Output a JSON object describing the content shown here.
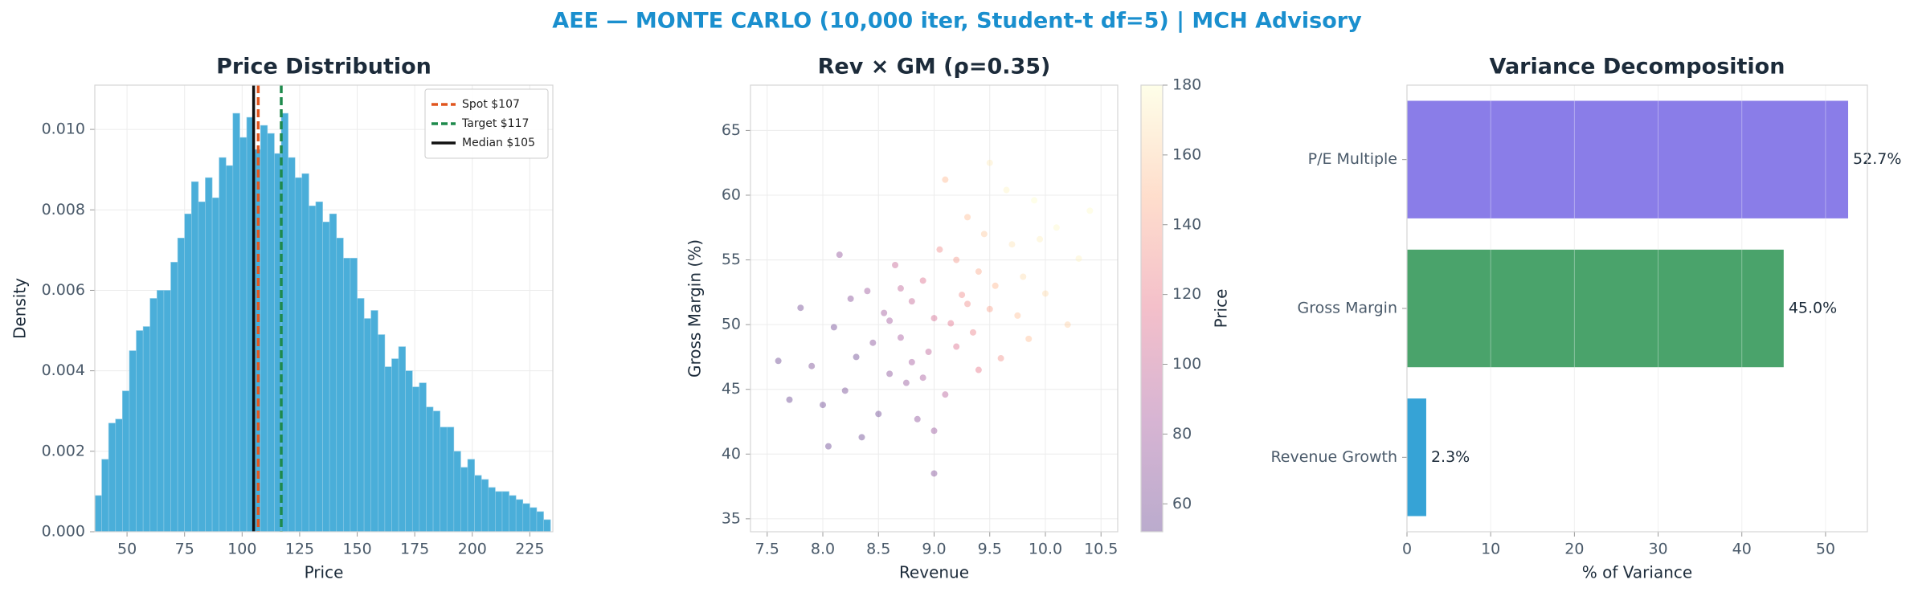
{
  "title": "AEE — MONTE CARLO (10,000 iter, Student-t df=5) | MCH Advisory",
  "chart_data": [
    {
      "type": "histogram",
      "title": "Price Distribution",
      "xlabel": "Price",
      "ylabel": "Density",
      "color": "#4aaed9",
      "bins": [
        36,
        39,
        42,
        45,
        48,
        51,
        54,
        57,
        60,
        63,
        66,
        69,
        72,
        75,
        78,
        81,
        84,
        87,
        90,
        93,
        96,
        99,
        102,
        105,
        108,
        111,
        114,
        117,
        120,
        123,
        126,
        129,
        132,
        135,
        138,
        141,
        144,
        147,
        150,
        153,
        156,
        159,
        162,
        165,
        168,
        171,
        174,
        177,
        180,
        183,
        186,
        189,
        192,
        195,
        198,
        201,
        204,
        207,
        210,
        213,
        216,
        219,
        222,
        225,
        228,
        231,
        234
      ],
      "values": [
        0.0009,
        0.0018,
        0.0027,
        0.0028,
        0.0035,
        0.0045,
        0.005,
        0.0051,
        0.0058,
        0.006,
        0.006,
        0.0067,
        0.0073,
        0.0079,
        0.0087,
        0.0082,
        0.0088,
        0.0083,
        0.0093,
        0.0091,
        0.0104,
        0.0098,
        0.0103,
        0.0095,
        0.0101,
        0.0099,
        0.0094,
        0.0104,
        0.0093,
        0.0088,
        0.0089,
        0.0081,
        0.0082,
        0.0077,
        0.0079,
        0.0073,
        0.0068,
        0.0068,
        0.0058,
        0.0053,
        0.0055,
        0.0049,
        0.0041,
        0.0043,
        0.0046,
        0.004,
        0.0036,
        0.0037,
        0.0031,
        0.003,
        0.0026,
        0.0026,
        0.002,
        0.0016,
        0.0018,
        0.0014,
        0.0013,
        0.0011,
        0.001,
        0.001,
        0.0009,
        0.0008,
        0.0007,
        0.0006,
        0.0005,
        0.0003
      ],
      "vlines": [
        {
          "name": "Spot $107",
          "value": 107,
          "color": "#e0561f",
          "dashed": true
        },
        {
          "name": "Target $117",
          "value": 117,
          "color": "#1e8a4c",
          "dashed": true
        },
        {
          "name": "Median $105",
          "value": 105,
          "color": "#111111",
          "dashed": false
        }
      ],
      "legend": "upper right",
      "grid": true,
      "xlim": [
        36,
        235
      ],
      "xticks": [
        50,
        75,
        100,
        125,
        150,
        175,
        200,
        225
      ],
      "ylim": [
        0,
        0.0111
      ],
      "yticks": [
        {
          "value": 0,
          "label": "0.000"
        },
        {
          "value": 0.002,
          "label": "0.002"
        },
        {
          "value": 0.004,
          "label": "0.004"
        },
        {
          "value": 0.006,
          "label": "0.006"
        },
        {
          "value": 0.008,
          "label": "0.008"
        },
        {
          "value": 0.01,
          "label": "0.010"
        }
      ]
    },
    {
      "type": "scatter",
      "title": "Rev × GM (ρ=0.35)",
      "xlabel": "Revenue",
      "ylabel": "Gross Margin (%)",
      "colorbar_label": "Price",
      "grid": true,
      "colormap": [
        "#3b0f70",
        "#8c2981",
        "#de4968",
        "#fe9f6d",
        "#fcfdbf"
      ],
      "opacity": 0.35,
      "x": [
        9.0,
        8.6,
        9.4,
        8.8,
        9.2,
        8.3,
        9.7,
        9.1,
        8.9,
        8.5,
        9.5,
        9.3,
        8.7,
        9.0,
        9.8,
        8.4,
        9.6,
        8.2,
        10.1,
        7.9,
        9.05,
        8.95,
        9.25,
        8.75,
        9.15,
        8.65,
        9.35,
        8.85,
        9.45,
        8.55,
        9.9,
        8.1,
        10.3,
        7.7,
        9.55,
        8.45,
        9.65,
        8.35,
        9.75,
        8.25,
        9.0,
        9.1,
        8.8,
        9.2,
        8.9,
        9.3,
        8.7,
        9.4,
        8.6,
        9.5,
        10.0,
        8.0,
        10.4,
        7.6,
        9.85,
        8.15,
        10.2,
        7.8,
        9.95,
        8.05
      ],
      "y": [
        50.5,
        46.2,
        54.1,
        51.8,
        48.3,
        47.5,
        56.2,
        44.6,
        53.4,
        43.1,
        51.2,
        58.3,
        49.0,
        41.8,
        53.7,
        52.6,
        47.4,
        44.9,
        57.5,
        46.8,
        55.8,
        47.9,
        52.3,
        45.5,
        50.1,
        54.6,
        49.4,
        42.7,
        57.0,
        50.9,
        59.6,
        49.8,
        55.1,
        44.2,
        53.0,
        48.6,
        60.4,
        41.3,
        50.7,
        52.0,
        38.5,
        61.2,
        47.1,
        55.0,
        45.9,
        51.6,
        52.8,
        46.5,
        50.3,
        62.5,
        52.4,
        43.8,
        58.8,
        47.2,
        48.9,
        55.4,
        50.0,
        51.3,
        56.6,
        40.6
      ],
      "color_values": [
        107,
        68,
        143,
        99,
        111,
        54,
        169,
        92,
        111,
        55,
        139,
        152,
        84,
        76,
        166,
        78,
        132,
        58,
        178,
        60,
        128,
        95,
        128,
        74,
        114,
        100,
        124,
        71,
        157,
        81,
        180,
        56,
        175,
        52,
        149,
        67,
        176,
        53,
        153,
        67,
        65,
        150,
        83,
        135,
        85,
        129,
        97,
        117,
        82,
        172,
        165,
        55,
        179,
        54,
        152,
        73,
        160,
        57,
        174,
        52
      ],
      "xlim": [
        7.35,
        10.65
      ],
      "xticks": [
        7.5,
        {
          "value": 8,
          "label": "8.0"
        },
        8.5,
        {
          "value": 9,
          "label": "9.0"
        },
        9.5,
        {
          "value": 10,
          "label": "10.0"
        },
        10.5
      ],
      "ylim": [
        34,
        68.5
      ],
      "yticks": [
        35,
        40,
        45,
        50,
        55,
        60,
        65
      ],
      "clim": [
        52,
        180
      ],
      "cticks": [
        60,
        80,
        100,
        120,
        140,
        160,
        180
      ]
    },
    {
      "type": "hbar",
      "title": "Variance Decomposition",
      "xlabel": "% of Variance",
      "grid": true,
      "categories": [
        "P/E Multiple",
        "Gross Margin",
        "Revenue Growth"
      ],
      "values": [
        52.7,
        45.0,
        2.3
      ],
      "value_labels": [
        "52.7%",
        "45.0%",
        "2.3%"
      ],
      "colors": [
        "#8a7de8",
        "#4aa36b",
        "#36a3d6"
      ],
      "xlim": [
        0,
        55
      ],
      "xticks": [
        0,
        10,
        20,
        30,
        40,
        50
      ]
    }
  ]
}
